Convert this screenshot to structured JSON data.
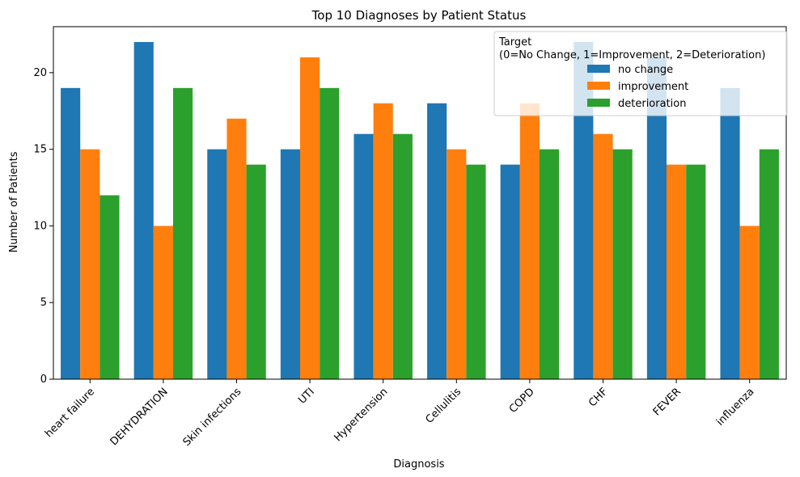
{
  "chart_data": {
    "type": "bar",
    "title": "Top 10 Diagnoses by Patient Status",
    "xlabel": "Diagnosis",
    "ylabel": "Number of Patients",
    "categories": [
      "heart failure",
      "DEHYDRATION",
      "Skin infections",
      "UTI",
      "Hypertension",
      "Cellulitis",
      "COPD",
      "CHF",
      "FEVER",
      "influenza"
    ],
    "series": [
      {
        "name": "no change",
        "color": "#1f77b4",
        "values": [
          19,
          22,
          15,
          15,
          16,
          18,
          14,
          22,
          21,
          19
        ]
      },
      {
        "name": "improvement",
        "color": "#ff7f0e",
        "values": [
          15,
          10,
          17,
          21,
          18,
          15,
          18,
          16,
          14,
          10
        ]
      },
      {
        "name": "deterioration",
        "color": "#2ca02c",
        "values": [
          12,
          19,
          14,
          19,
          16,
          14,
          15,
          15,
          14,
          15
        ]
      }
    ],
    "ylim": [
      0,
      23
    ],
    "yticks": [
      0,
      5,
      10,
      15,
      20
    ],
    "grid": false,
    "legend": {
      "title_line1": "Target",
      "title_line2": "(0=No Change, 1=Improvement, 2=Deterioration)",
      "placement": "top-right"
    }
  }
}
